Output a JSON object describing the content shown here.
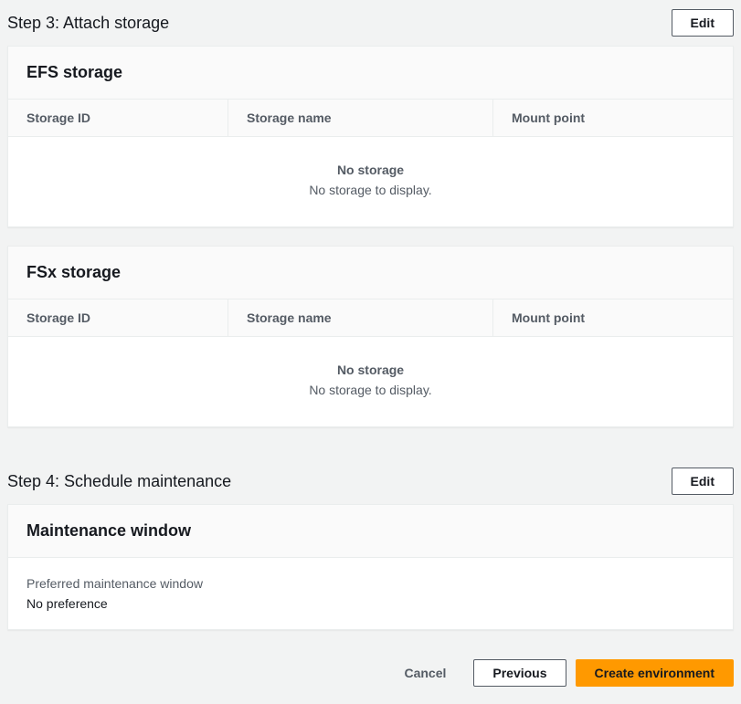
{
  "step3": {
    "title": "Step 3: Attach storage",
    "edit_label": "Edit"
  },
  "efs_panel": {
    "title": "EFS storage",
    "columns": {
      "id": "Storage ID",
      "name": "Storage name",
      "mount": "Mount point"
    },
    "empty_title": "No storage",
    "empty_sub": "No storage to display."
  },
  "fsx_panel": {
    "title": "FSx storage",
    "columns": {
      "id": "Storage ID",
      "name": "Storage name",
      "mount": "Mount point"
    },
    "empty_title": "No storage",
    "empty_sub": "No storage to display."
  },
  "step4": {
    "title": "Step 4: Schedule maintenance",
    "edit_label": "Edit"
  },
  "maintenance_panel": {
    "title": "Maintenance window",
    "field_label": "Preferred maintenance window",
    "field_value": "No preference"
  },
  "footer": {
    "cancel": "Cancel",
    "previous": "Previous",
    "create": "Create environment"
  }
}
